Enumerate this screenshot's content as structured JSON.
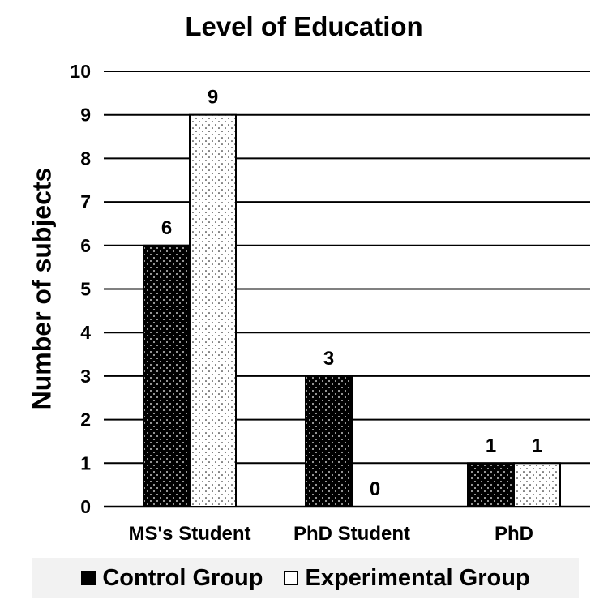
{
  "chart_data": {
    "type": "bar",
    "title": "Level of Education",
    "xlabel": "",
    "ylabel": "Number of subjects",
    "categories": [
      "MS's Student",
      "PhD Student",
      "PhD"
    ],
    "series": [
      {
        "name": "Control Group",
        "values": [
          6,
          3,
          1
        ],
        "data_labels": [
          "6",
          "3",
          "1"
        ]
      },
      {
        "name": "Experimental Group",
        "values": [
          9,
          0,
          1
        ],
        "data_labels": [
          "9",
          "0",
          "1"
        ]
      }
    ],
    "ylim": [
      0,
      10
    ],
    "yticks": [
      "0",
      "1",
      "2",
      "3",
      "4",
      "5",
      "6",
      "7",
      "8",
      "9",
      "10"
    ],
    "grid": true,
    "legend_position": "bottom",
    "colors": {
      "control_fill": "#000000",
      "experimental_fill": "#ffffff",
      "grid": "#000000"
    }
  }
}
